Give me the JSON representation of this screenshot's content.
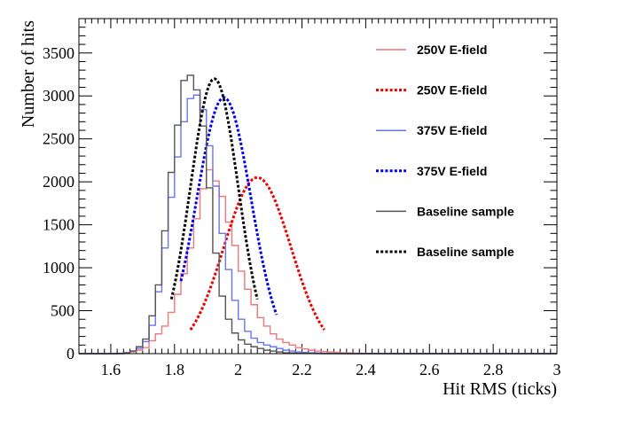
{
  "chart_data": {
    "type": "line",
    "title": "",
    "xlabel": "Hit RMS (ticks)",
    "ylabel": "Number of hits",
    "xlim": [
      1.5,
      3.0
    ],
    "ylim": [
      0,
      3900
    ],
    "x_ticks": [
      {
        "value": 1.6,
        "label": "1.6"
      },
      {
        "value": 1.8,
        "label": "1.8"
      },
      {
        "value": 2.0,
        "label": "2"
      },
      {
        "value": 2.2,
        "label": "2.2"
      },
      {
        "value": 2.4,
        "label": "2.4"
      },
      {
        "value": 2.6,
        "label": "2.6"
      },
      {
        "value": 2.8,
        "label": "2.8"
      },
      {
        "value": 3.0,
        "label": "3"
      }
    ],
    "y_ticks": [
      {
        "value": 0,
        "label": "0"
      },
      {
        "value": 500,
        "label": "500"
      },
      {
        "value": 1000,
        "label": "1000"
      },
      {
        "value": 1500,
        "label": "1500"
      },
      {
        "value": 2000,
        "label": "2000"
      },
      {
        "value": 2500,
        "label": "2500"
      },
      {
        "value": 3000,
        "label": "3000"
      },
      {
        "value": 3500,
        "label": "3500"
      }
    ],
    "grid": false,
    "legend_position": "right",
    "series": [
      {
        "name": "250V E-field",
        "style": "histogram",
        "color": "#ee7777",
        "bin_width": 0.02,
        "x_start": 1.5,
        "values": [
          0,
          0,
          0,
          0,
          0,
          0,
          0,
          10,
          20,
          40,
          70,
          150,
          230,
          320,
          480,
          690,
          930,
          1230,
          1570,
          1920,
          2140,
          2010,
          1830,
          1530,
          1260,
          960,
          750,
          570,
          420,
          320,
          230,
          170,
          130,
          100,
          70,
          55,
          40,
          30,
          25,
          20,
          15,
          10,
          8,
          5,
          4,
          3,
          2,
          1,
          1,
          0,
          0,
          0,
          0,
          0,
          0,
          0,
          0,
          0,
          0,
          0,
          0,
          0,
          0,
          0,
          0,
          0,
          0,
          0,
          0,
          0,
          0,
          0,
          0,
          0,
          0
        ]
      },
      {
        "name": "250V E-field",
        "style": "fit",
        "color": "#ee0000",
        "mu": 2.06,
        "sigma": 0.105,
        "amplitude": 2050,
        "range": [
          1.85,
          2.27
        ]
      },
      {
        "name": "375V E-field",
        "style": "histogram",
        "color": "#6677ee",
        "bin_width": 0.02,
        "x_start": 1.5,
        "values": [
          0,
          0,
          0,
          0,
          0,
          0,
          0,
          10,
          30,
          60,
          140,
          330,
          720,
          1230,
          1820,
          2290,
          2700,
          2970,
          3010,
          2840,
          2420,
          1950,
          1400,
          980,
          620,
          400,
          260,
          180,
          130,
          100,
          80,
          60,
          40,
          30,
          20,
          15,
          10,
          8,
          5,
          3,
          2,
          1,
          0,
          0,
          0,
          0,
          0,
          0,
          0,
          0,
          0,
          0,
          0,
          0,
          0,
          0,
          0,
          0,
          0,
          0,
          0,
          0,
          0,
          0,
          0,
          0,
          0,
          0,
          0,
          0,
          0,
          0,
          0,
          0,
          0
        ]
      },
      {
        "name": "375V E-field",
        "style": "fit",
        "color": "#0000ee",
        "mu": 1.955,
        "sigma": 0.085,
        "amplitude": 2980,
        "range": [
          1.82,
          2.12
        ]
      },
      {
        "name": "Baseline sample",
        "style": "histogram",
        "color": "#555555",
        "bin_width": 0.02,
        "x_start": 1.5,
        "values": [
          0,
          0,
          0,
          0,
          0,
          0,
          5,
          10,
          30,
          80,
          170,
          440,
          800,
          1430,
          2110,
          2660,
          3180,
          3240,
          3070,
          2650,
          1930,
          1170,
          670,
          400,
          240,
          160,
          110,
          80,
          60,
          40,
          30,
          20,
          10,
          8,
          5,
          3,
          2,
          1,
          0,
          0,
          0,
          0,
          0,
          0,
          0,
          0,
          0,
          0,
          0,
          0,
          0,
          0,
          0,
          0,
          0,
          0,
          0,
          0,
          0,
          0,
          0,
          0,
          0,
          0,
          0,
          0,
          0,
          0,
          0,
          0,
          0,
          0,
          0,
          0,
          0
        ]
      },
      {
        "name": "Baseline sample",
        "style": "fit",
        "color": "#000000",
        "mu": 1.925,
        "sigma": 0.075,
        "amplitude": 3200,
        "range": [
          1.79,
          2.06
        ]
      }
    ],
    "legend": [
      {
        "label": "250V E-field",
        "color": "#ee7777",
        "dash": "solid"
      },
      {
        "label": "250V E-field",
        "color": "#ee0000",
        "dash": "dotted"
      },
      {
        "label": "375V E-field",
        "color": "#6677ee",
        "dash": "solid"
      },
      {
        "label": "375V E-field",
        "color": "#0000ee",
        "dash": "dotted"
      },
      {
        "label": "Baseline sample",
        "color": "#555555",
        "dash": "solid"
      },
      {
        "label": "Baseline sample",
        "color": "#000000",
        "dash": "dotted"
      }
    ]
  }
}
